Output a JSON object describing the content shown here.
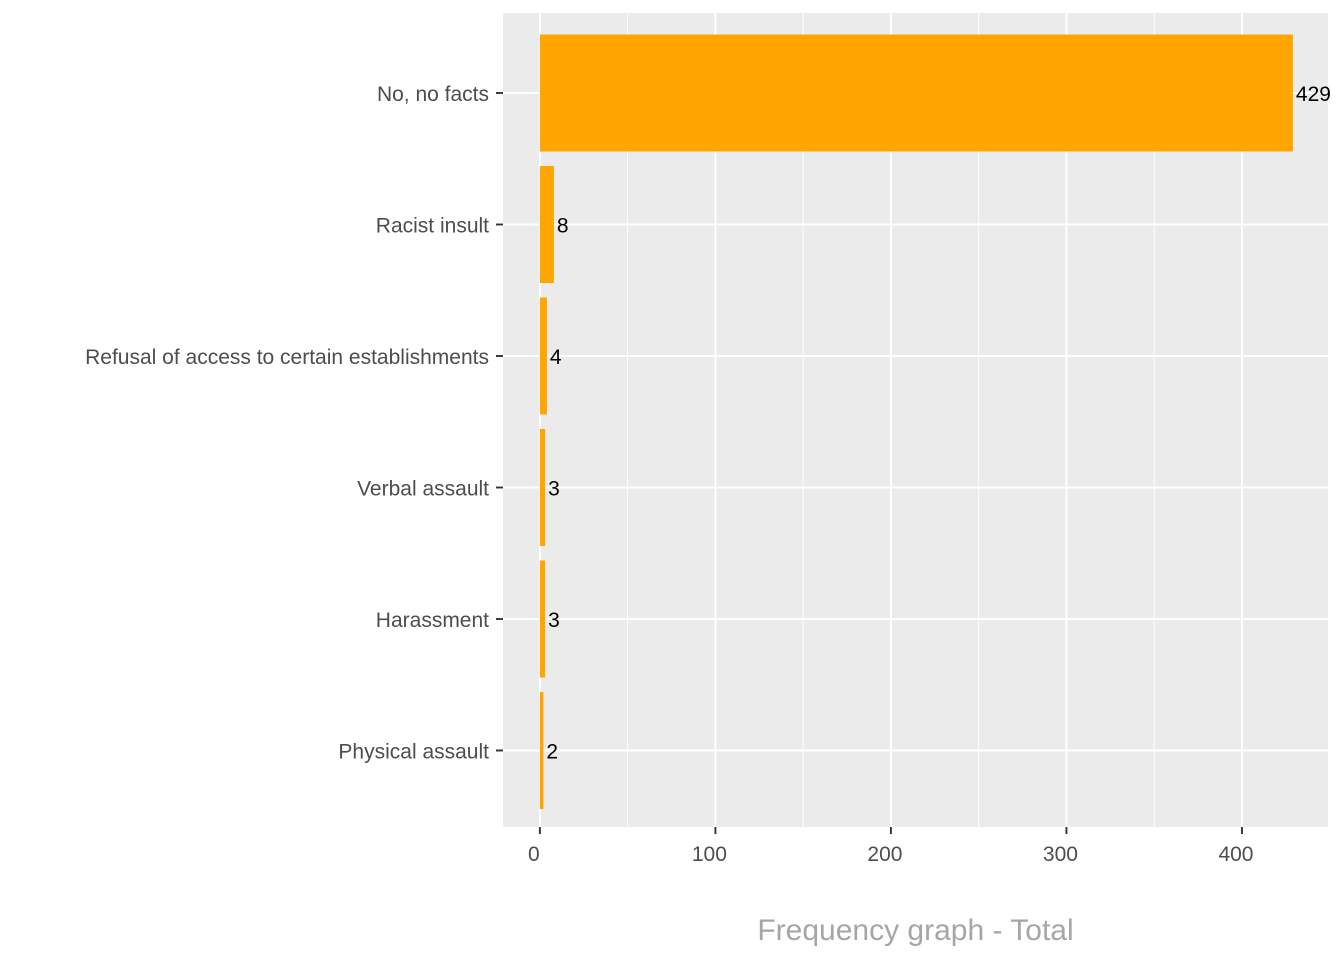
{
  "chart_data": {
    "type": "bar",
    "orientation": "horizontal",
    "categories": [
      "No, no facts",
      "Racist insult",
      "Refusal of access to certain establishments",
      "Verbal assault",
      "Harassment",
      "Physical assault"
    ],
    "values": [
      429,
      8,
      4,
      3,
      3,
      2
    ],
    "data_labels": [
      "429",
      "8",
      "4",
      "3",
      "3",
      "2"
    ],
    "xlabel": "Frequency graph - Total",
    "ylabel": "",
    "xlim": [
      -21,
      449
    ],
    "x_ticks": [
      0,
      100,
      200,
      300,
      400
    ],
    "x_tick_labels": [
      "0",
      "100",
      "200",
      "300",
      "400"
    ],
    "grid": true,
    "legend": "none",
    "colors": {
      "bar": "#FFA500",
      "panel": "#EBEBEB",
      "grid": "#FFFFFF",
      "axis_text": "#4D4D4D",
      "axis_title": "#A6A6A6",
      "data_label": "#000000"
    }
  }
}
